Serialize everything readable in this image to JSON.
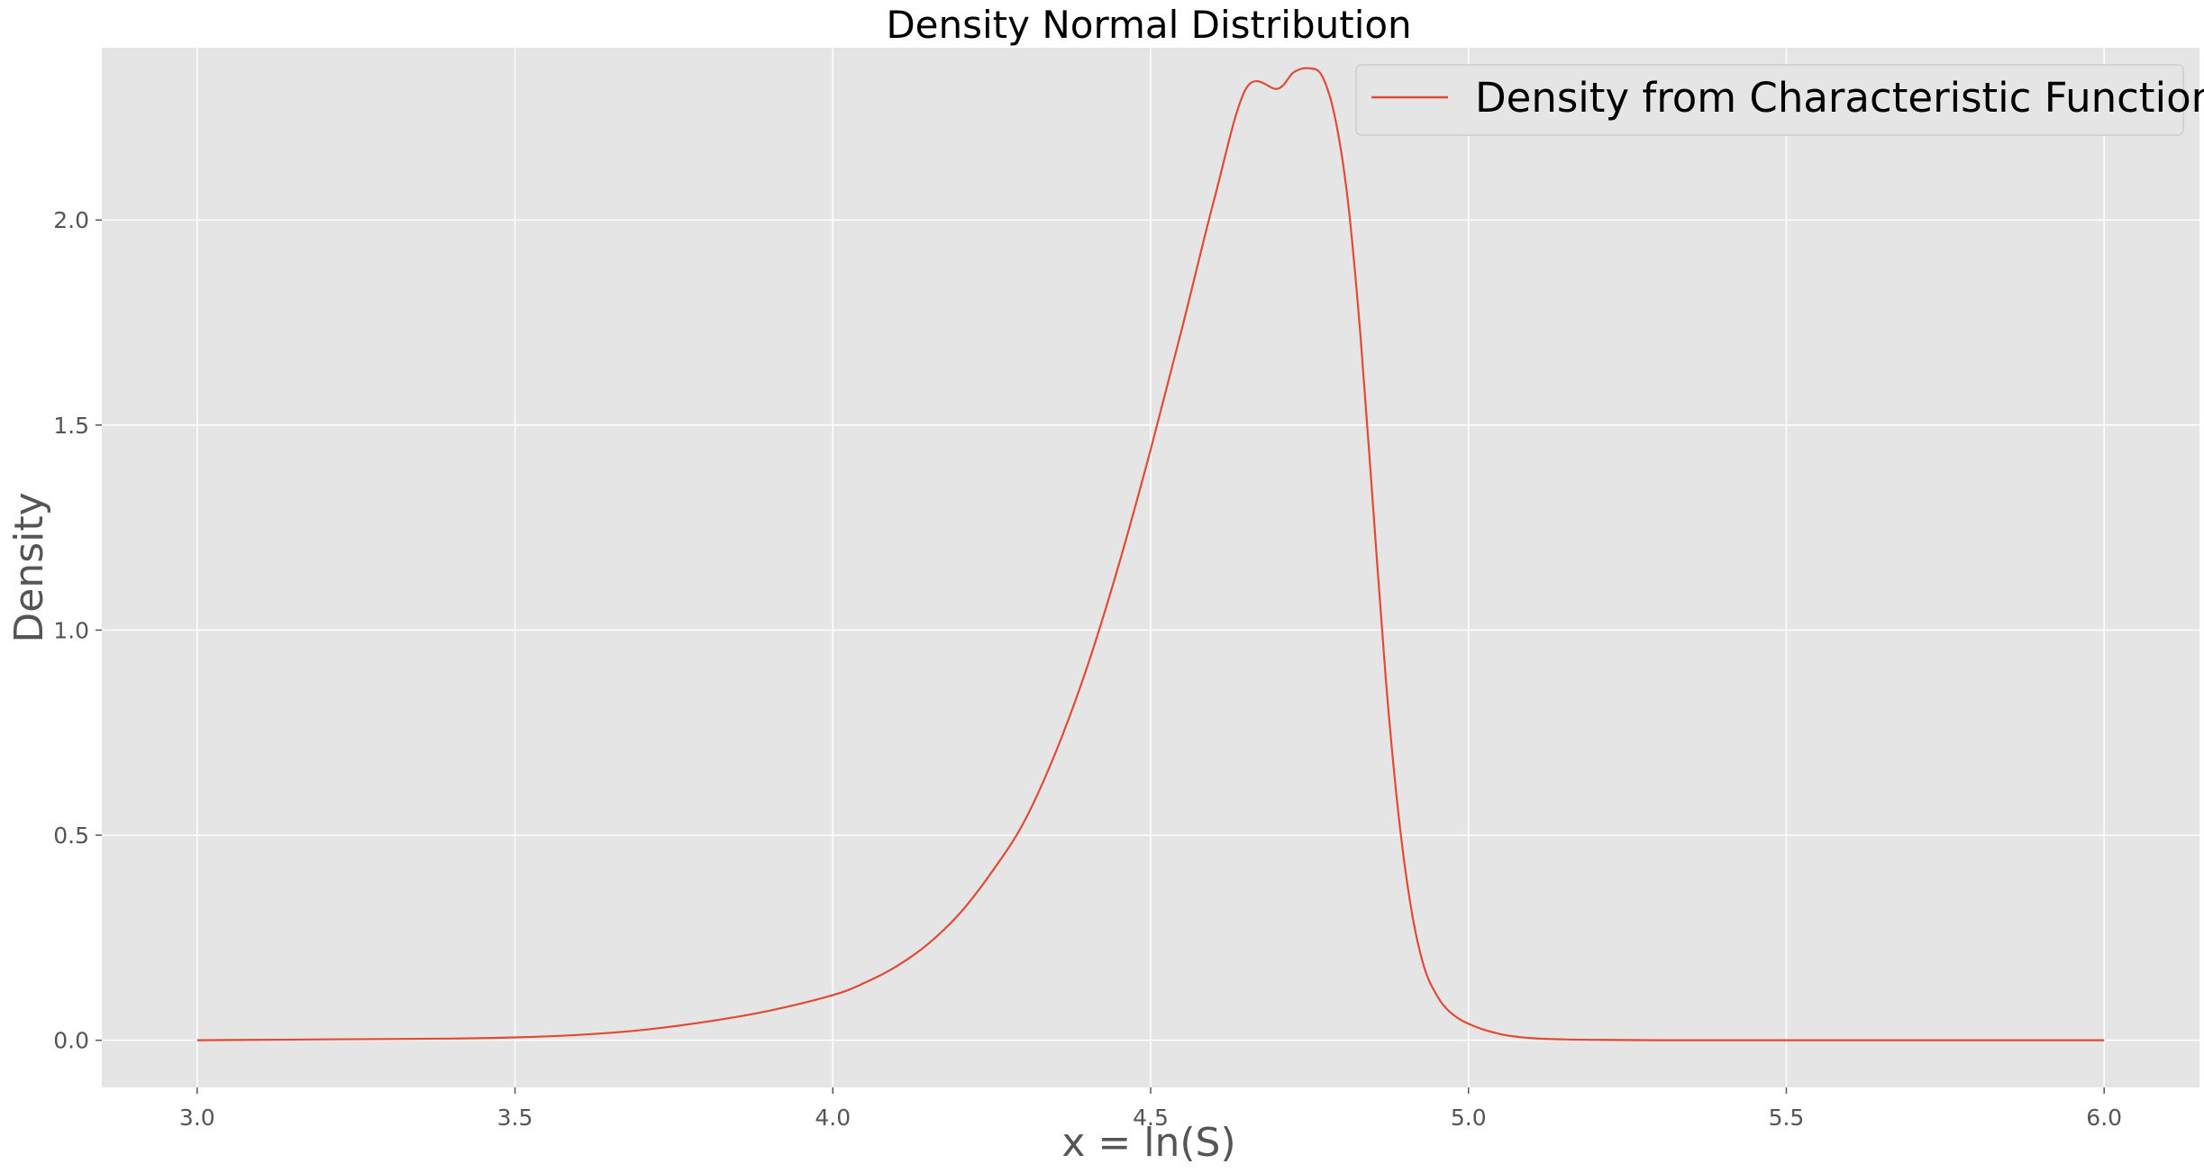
{
  "chart_data": {
    "type": "line",
    "title": "Density Normal Distribution",
    "xlabel": "x = ln(S)",
    "ylabel": "Density",
    "xlim": [
      2.85,
      6.15
    ],
    "ylim": [
      -0.115,
      2.42
    ],
    "xticks": [
      3.0,
      3.5,
      4.0,
      4.5,
      5.0,
      5.5,
      6.0
    ],
    "xtick_labels": [
      "3.0",
      "3.5",
      "4.0",
      "4.5",
      "5.0",
      "5.5",
      "6.0"
    ],
    "yticks": [
      0.0,
      0.5,
      1.0,
      1.5,
      2.0
    ],
    "ytick_labels": [
      "0.0",
      "0.5",
      "1.0",
      "1.5",
      "2.0"
    ],
    "grid": true,
    "legend_position": "top-right",
    "background_color": "#e5e5e5",
    "grid_color": "#ffffff",
    "series": [
      {
        "name": "Density from Characteristic Function",
        "color": "#e24a33",
        "x": [
          3.0,
          3.2,
          3.4,
          3.5,
          3.6,
          3.7,
          3.8,
          3.9,
          4.0,
          4.05,
          4.1,
          4.15,
          4.2,
          4.25,
          4.3,
          4.35,
          4.4,
          4.45,
          4.5,
          4.55,
          4.6,
          4.65,
          4.7,
          4.725,
          4.75,
          4.77,
          4.79,
          4.81,
          4.83,
          4.85,
          4.87,
          4.89,
          4.91,
          4.93,
          4.95,
          4.97,
          5.0,
          5.05,
          5.1,
          5.15,
          5.2,
          5.3,
          5.5,
          6.0
        ],
        "y": [
          0.0,
          0.002,
          0.004,
          0.007,
          0.013,
          0.025,
          0.045,
          0.072,
          0.11,
          0.14,
          0.18,
          0.235,
          0.31,
          0.41,
          0.53,
          0.7,
          0.91,
          1.16,
          1.44,
          1.74,
          2.05,
          2.32,
          2.32,
          2.36,
          2.37,
          2.35,
          2.25,
          2.05,
          1.72,
          1.3,
          0.88,
          0.55,
          0.32,
          0.18,
          0.11,
          0.07,
          0.04,
          0.015,
          0.005,
          0.002,
          0.001,
          0.0,
          0.0,
          0.0
        ]
      }
    ]
  }
}
